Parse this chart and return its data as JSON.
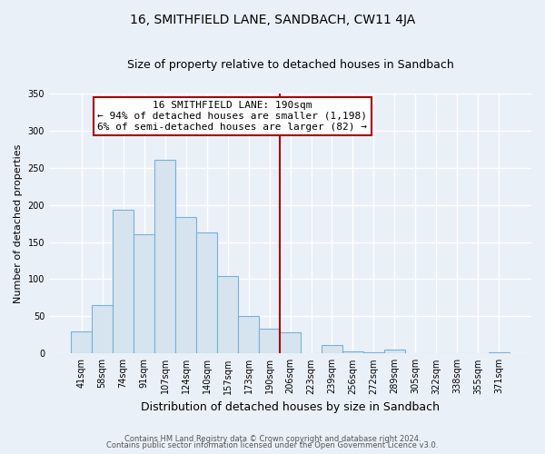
{
  "title": "16, SMITHFIELD LANE, SANDBACH, CW11 4JA",
  "subtitle": "Size of property relative to detached houses in Sandbach",
  "xlabel": "Distribution of detached houses by size in Sandbach",
  "ylabel": "Number of detached properties",
  "bar_labels": [
    "41sqm",
    "58sqm",
    "74sqm",
    "91sqm",
    "107sqm",
    "124sqm",
    "140sqm",
    "157sqm",
    "173sqm",
    "190sqm",
    "206sqm",
    "223sqm",
    "239sqm",
    "256sqm",
    "272sqm",
    "289sqm",
    "305sqm",
    "322sqm",
    "338sqm",
    "355sqm",
    "371sqm"
  ],
  "bar_heights": [
    30,
    65,
    193,
    161,
    260,
    184,
    163,
    104,
    50,
    33,
    29,
    0,
    11,
    3,
    1,
    5,
    0,
    0,
    0,
    0,
    2
  ],
  "bar_color": "#d6e4f0",
  "bar_edge_color": "#7bafd4",
  "vline_color": "#aa0000",
  "ylim": [
    0,
    350
  ],
  "yticks": [
    0,
    50,
    100,
    150,
    200,
    250,
    300,
    350
  ],
  "annotation_title": "16 SMITHFIELD LANE: 190sqm",
  "annotation_line1": "← 94% of detached houses are smaller (1,198)",
  "annotation_line2": "6% of semi-detached houses are larger (82) →",
  "annotation_box_facecolor": "#ffffff",
  "annotation_box_edgecolor": "#aa0000",
  "footer1": "Contains HM Land Registry data © Crown copyright and database right 2024.",
  "footer2": "Contains public sector information licensed under the Open Government Licence v3.0.",
  "plot_bg_color": "#eaf0f8",
  "fig_bg_color": "#eaf0f8",
  "grid_color": "#ffffff",
  "title_fontsize": 10,
  "subtitle_fontsize": 9,
  "ylabel_fontsize": 8,
  "xlabel_fontsize": 9,
  "tick_fontsize": 7,
  "annotation_fontsize": 8,
  "footer_fontsize": 6
}
